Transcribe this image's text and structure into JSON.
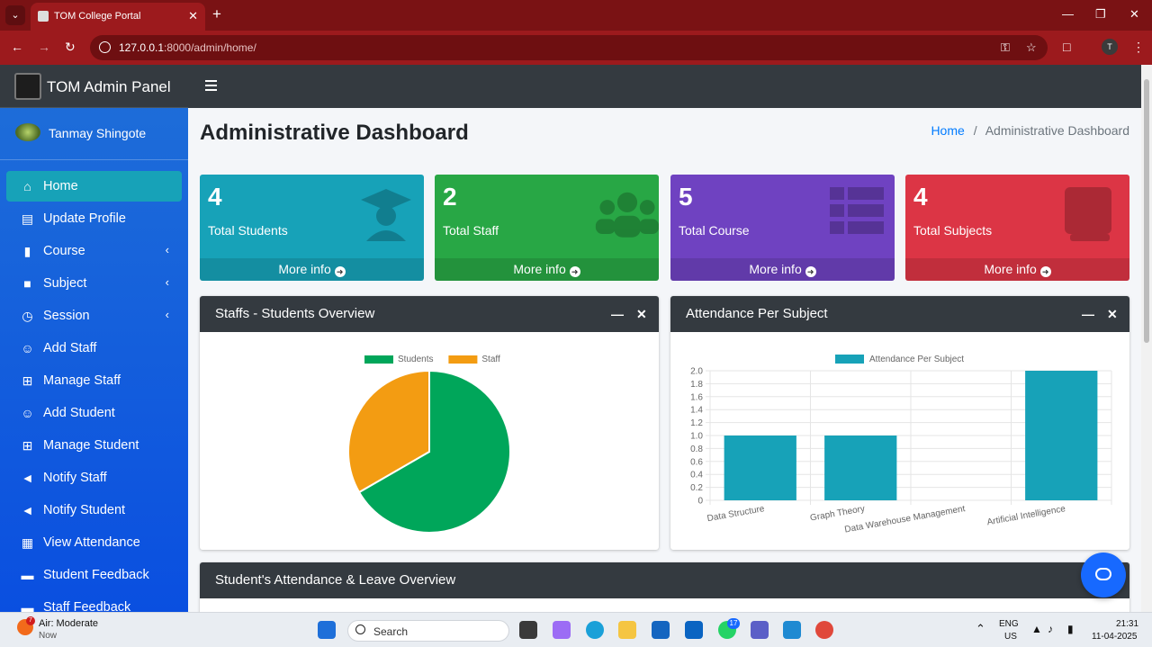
{
  "browser": {
    "tab_title": "TOM College Portal",
    "url_host": "127.0.0.1",
    "url_rest": ":8000/admin/home/",
    "profile_initial": "T"
  },
  "brand": {
    "title": "TOM Admin Panel"
  },
  "user": {
    "name": "Tanmay Shingote"
  },
  "sidebar": {
    "items": [
      {
        "label": "Home",
        "icon": "home-icon",
        "active": true
      },
      {
        "label": "Update Profile",
        "icon": "id-card-icon"
      },
      {
        "label": "Course",
        "icon": "bookmark-icon",
        "chevron": true
      },
      {
        "label": "Subject",
        "icon": "book-icon",
        "chevron": true
      },
      {
        "label": "Session",
        "icon": "clock-icon",
        "chevron": true
      },
      {
        "label": "Add Staff",
        "icon": "user-plus-icon"
      },
      {
        "label": "Manage Staff",
        "icon": "grid-icon"
      },
      {
        "label": "Add Student",
        "icon": "user-plus-icon"
      },
      {
        "label": "Manage Student",
        "icon": "grid-icon"
      },
      {
        "label": "Notify Staff",
        "icon": "bullhorn-icon"
      },
      {
        "label": "Notify Student",
        "icon": "bullhorn-icon"
      },
      {
        "label": "View Attendance",
        "icon": "calendar-icon"
      },
      {
        "label": "Student Feedback",
        "icon": "comment-icon"
      },
      {
        "label": "Staff Feedback",
        "icon": "comment-icon"
      }
    ]
  },
  "page": {
    "title": "Administrative Dashboard",
    "breadcrumb_home": "Home",
    "breadcrumb_sep": "/",
    "breadcrumb_current": "Administrative Dashboard"
  },
  "stats": [
    {
      "value": "4",
      "label": "Total Students",
      "link": "More info",
      "color": "#17a2b8",
      "icon": "graduate-icon"
    },
    {
      "value": "2",
      "label": "Total Staff",
      "link": "More info",
      "color": "#28a745",
      "icon": "users-icon"
    },
    {
      "value": "5",
      "label": "Total Course",
      "link": "More info",
      "color": "#6f42c1",
      "icon": "table-icon"
    },
    {
      "value": "4",
      "label": "Total Subjects",
      "link": "More info",
      "color": "#dc3545",
      "icon": "book-icon"
    }
  ],
  "cards": {
    "overview_title": "Staffs - Students Overview",
    "attendance_title": "Attendance Per Subject",
    "leave_title": "Student's Attendance & Leave Overview"
  },
  "chart_data": [
    {
      "type": "pie",
      "labels": [
        "Students",
        "Staff"
      ],
      "values": [
        4,
        2
      ],
      "colors": [
        "#00a65a",
        "#f39c12"
      ],
      "legend_position": "top"
    },
    {
      "type": "bar",
      "categories": [
        "Data Structure",
        "Graph Theory",
        "Data Warehouse Management",
        "Artificial Intelligence"
      ],
      "series": [
        {
          "name": "Attendance Per Subject",
          "values": [
            1,
            1,
            0,
            2
          ]
        }
      ],
      "y_ticks": [
        "0",
        "0.2",
        "0.4",
        "0.6",
        "0.8",
        "1.0",
        "1.2",
        "1.4",
        "1.6",
        "1.8",
        "2.0"
      ],
      "ylim": [
        0,
        2
      ],
      "color": "#17a2b8",
      "grid": true,
      "legend_position": "top"
    }
  ],
  "taskbar": {
    "weather_title": "Air: Moderate",
    "weather_sub": "Now",
    "weather_badge": "7",
    "search_placeholder": "Search",
    "whatsapp_badge": "17",
    "lang_1": "ENG",
    "lang_2": "US",
    "time": "21:31",
    "date": "11-04-2025"
  }
}
